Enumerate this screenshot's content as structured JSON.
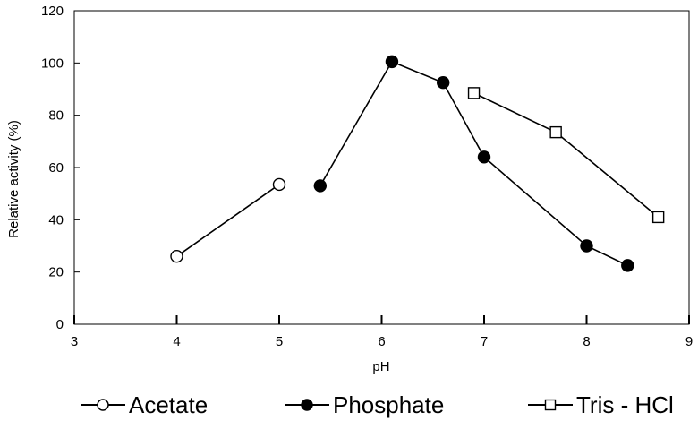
{
  "chart_data": {
    "type": "line",
    "title": "",
    "xlabel": "pH",
    "ylabel": "Relative activity (%)",
    "xlim": [
      3,
      9
    ],
    "ylim": [
      0,
      120
    ],
    "x_ticks": [
      3,
      4,
      5,
      6,
      7,
      8,
      9
    ],
    "y_ticks": [
      0,
      20,
      40,
      60,
      80,
      100,
      120
    ],
    "grid": false,
    "legend_position": "bottom",
    "series": [
      {
        "name": "Acetate",
        "marker": "open-circle",
        "color": "#000000",
        "x": [
          4.0,
          5.0
        ],
        "y": [
          26,
          53.5
        ]
      },
      {
        "name": "Phosphate",
        "marker": "filled-circle",
        "color": "#000000",
        "x": [
          5.4,
          6.1,
          6.6,
          7.0,
          8.0,
          8.4
        ],
        "y": [
          53,
          100.5,
          92.5,
          64,
          30,
          22.5
        ]
      },
      {
        "name": "Tris - HCl",
        "marker": "open-square",
        "color": "#000000",
        "x": [
          6.9,
          7.7,
          8.7
        ],
        "y": [
          88.5,
          73.5,
          41
        ]
      }
    ]
  },
  "legend": {
    "items": [
      "Acetate",
      "Phosphate",
      "Tris - HCl"
    ]
  }
}
